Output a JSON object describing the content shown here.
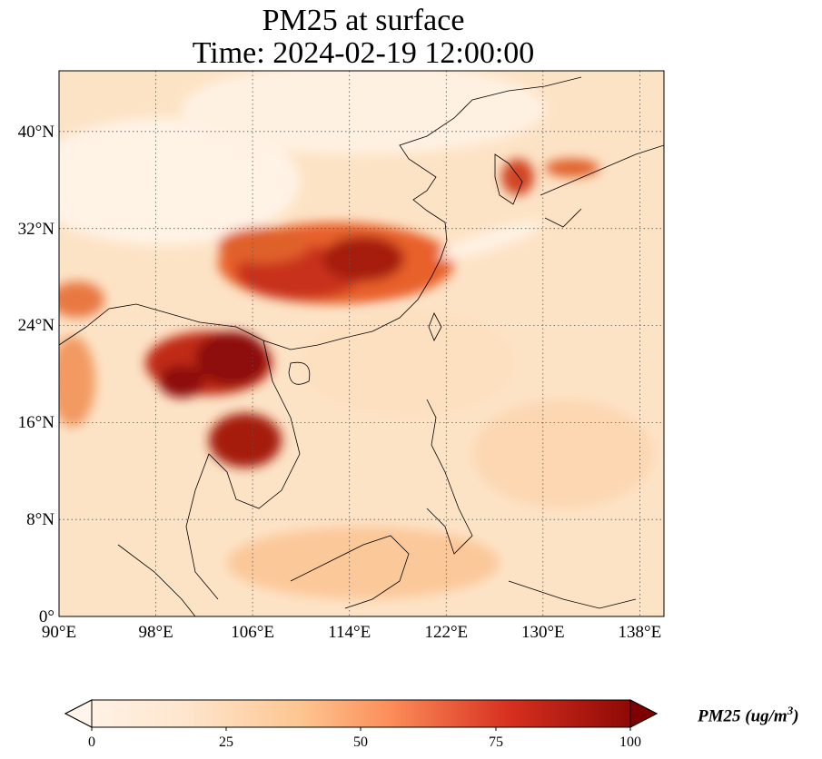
{
  "title_line1": "PM25 at surface",
  "title_line2": "Time: 2024-02-19 12:00:00",
  "map": {
    "extent": {
      "lon_min": 90,
      "lon_max": 140,
      "lat_min": 0,
      "lat_max": 45
    },
    "lat_ticks": [
      {
        "value": 0,
        "label": "0°"
      },
      {
        "value": 8,
        "label": "8°N"
      },
      {
        "value": 16,
        "label": "16°N"
      },
      {
        "value": 24,
        "label": "24°N"
      },
      {
        "value": 32,
        "label": "32°N"
      },
      {
        "value": 40,
        "label": "40°N"
      }
    ],
    "lon_ticks": [
      {
        "value": 90,
        "label": "90°E"
      },
      {
        "value": 98,
        "label": "98°E"
      },
      {
        "value": 106,
        "label": "106°E"
      },
      {
        "value": 114,
        "label": "114°E"
      },
      {
        "value": 122,
        "label": "122°E"
      },
      {
        "value": 130,
        "label": "130°E"
      },
      {
        "value": 138,
        "label": "138°E"
      }
    ],
    "colors": {
      "low": "#fff5eb",
      "mid": "#fdae6b",
      "high": "#e6550d",
      "max": "#7f0000",
      "coast": "#000000",
      "grid": "#555555"
    }
  },
  "colorbar": {
    "label_text": "PM25 (ug/m",
    "label_sup": "3",
    "label_close": ")",
    "ticks": [
      "0",
      "25",
      "50",
      "75",
      "100"
    ],
    "min": 0,
    "max": 100
  }
}
